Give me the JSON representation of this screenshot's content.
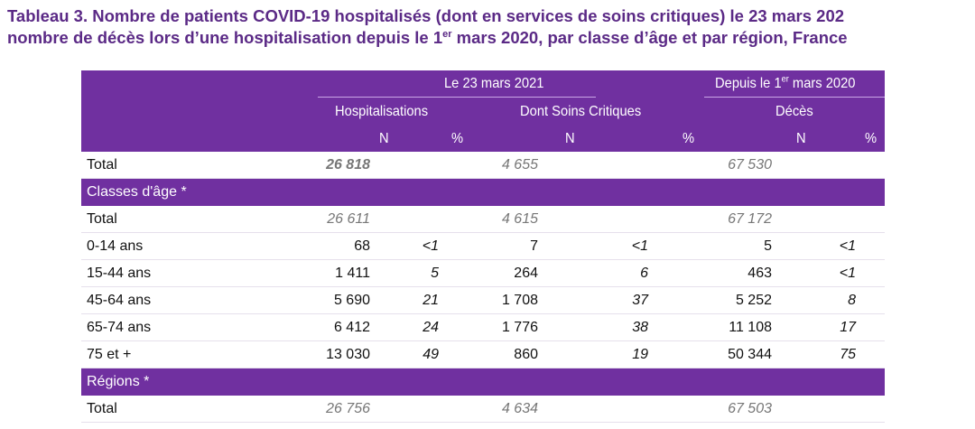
{
  "title": {
    "line1": "Tableau 3. Nombre de patients COVID-19 hospitalisés (dont en services de soins critiques) le 23 mars 202",
    "line2_pre": "nombre de décès lors d’une hospitalisation depuis le 1",
    "line2_sup": "er",
    "line2_post": " mars 2020, par classe d’âge et par région, France"
  },
  "header": {
    "group1": "Le 23 mars 2021",
    "group2_pre": "Depuis le 1",
    "group2_sup": "er",
    "group2_post": " mars 2020",
    "col_hosp": "Hospitalisations",
    "col_crit": "Dont Soins Critiques",
    "col_deces": "Décès",
    "sub": [
      "N",
      "%",
      "N",
      "%",
      "N",
      "%"
    ]
  },
  "rows": [
    {
      "label": "Total",
      "v": [
        "26 818",
        "",
        "4 655",
        "",
        "67 530",
        ""
      ]
    },
    {
      "section": "Classes d'âge *"
    },
    {
      "label": "Total",
      "v": [
        "26 611",
        "",
        "4 615",
        "",
        "67 172",
        ""
      ]
    },
    {
      "label": "0-14 ans",
      "v": [
        "68",
        "<1",
        "7",
        "<1",
        "5",
        "<1"
      ]
    },
    {
      "label": "15-44 ans",
      "v": [
        "1 411",
        "5",
        "264",
        "6",
        "463",
        "<1"
      ]
    },
    {
      "label": "45-64 ans",
      "v": [
        "5 690",
        "21",
        "1 708",
        "37",
        "5 252",
        "8"
      ]
    },
    {
      "label": "65-74 ans",
      "v": [
        "6 412",
        "24",
        "1 776",
        "38",
        "11 108",
        "17"
      ]
    },
    {
      "label": "75 et +",
      "v": [
        "13 030",
        "49",
        "860",
        "19",
        "50 344",
        "75"
      ]
    },
    {
      "section": "Régions *"
    },
    {
      "label": "Total",
      "v": [
        "26 756",
        "",
        "4 634",
        "",
        "67 503",
        ""
      ]
    }
  ]
}
